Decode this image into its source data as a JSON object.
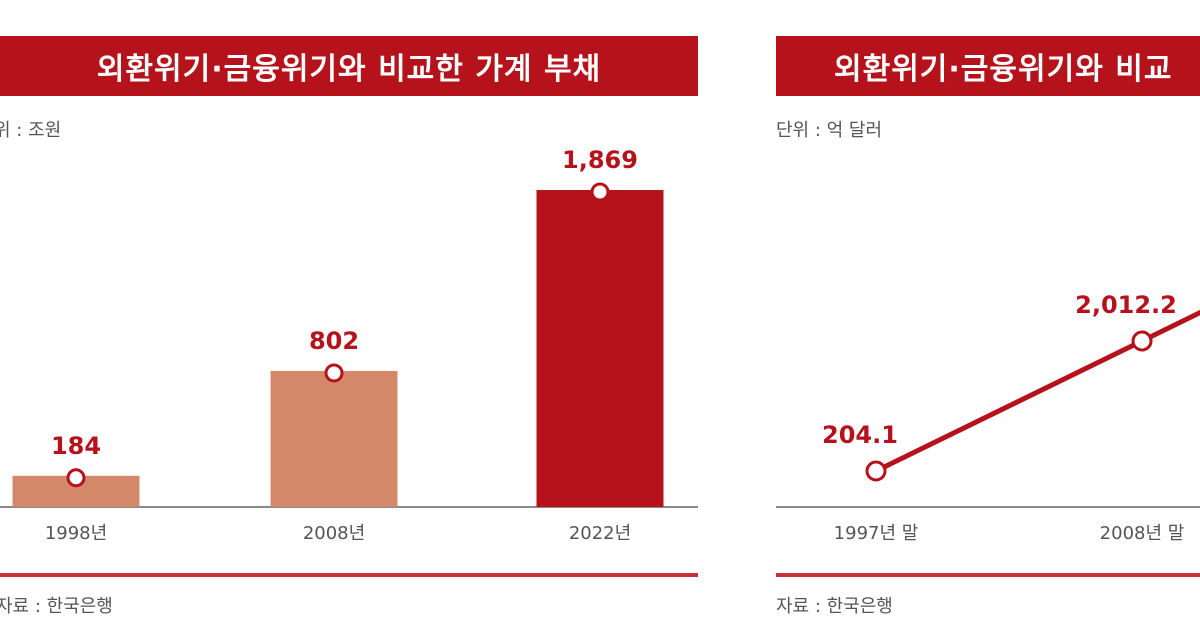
{
  "colors": {
    "title_bg": "#b5121b",
    "bar_past": "#d4886a",
    "bar_current": "#b5121b",
    "line": "#b5121b",
    "value_label": "#b5121b"
  },
  "chart_data": [
    {
      "type": "bar",
      "title": "외환위기·금융위기와 비교한 가계 부채",
      "unit_label": "위 : 조원",
      "source": "자료 : 한국은행",
      "categories": [
        "1998년",
        "2008년",
        "2022년"
      ],
      "values": [
        184,
        802,
        1869
      ],
      "value_labels": [
        "184",
        "802",
        "1,869"
      ],
      "highlight_index": 2,
      "ylim": [
        0,
        2000
      ],
      "grid": false,
      "xlabel": "",
      "ylabel": ""
    },
    {
      "type": "line",
      "title": "외환위기·금융위기와 비교",
      "unit_label": "단위 : 억 달러",
      "source": "자료 : 한국은행",
      "categories": [
        "1997년 말",
        "2008년 말"
      ],
      "values": [
        204.1,
        2012.2
      ],
      "value_labels": [
        "204.1",
        "2,012.2"
      ],
      "grid": false,
      "xlabel": "",
      "ylabel": ""
    }
  ]
}
